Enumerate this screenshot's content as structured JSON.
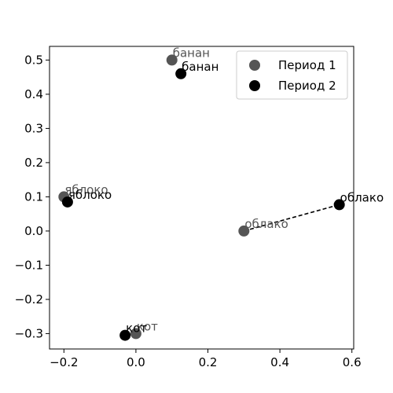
{
  "chart_data": {
    "type": "scatter",
    "xlim": [
      -0.24,
      0.605
    ],
    "ylim": [
      -0.345,
      0.54
    ],
    "x_ticks": [
      -0.2,
      0.0,
      0.2,
      0.4,
      0.6
    ],
    "x_tick_labels": [
      "−0.2",
      "0.0",
      "0.2",
      "0.4",
      "0.6"
    ],
    "y_ticks": [
      -0.3,
      -0.2,
      -0.1,
      0.0,
      0.1,
      0.2,
      0.3,
      0.4,
      0.5
    ],
    "y_tick_labels": [
      "−0.3",
      "−0.2",
      "−0.1",
      "0.0",
      "0.1",
      "0.2",
      "0.3",
      "0.4",
      "0.5"
    ],
    "grid": false,
    "legend_position": "top-right",
    "series": [
      {
        "name": "Период 1",
        "color": "#555555",
        "points": [
          {
            "label": "банан",
            "x": 0.1,
            "y": 0.5
          },
          {
            "label": "яблоко",
            "x": -0.2,
            "y": 0.1
          },
          {
            "label": "облако",
            "x": 0.3,
            "y": 0.0
          },
          {
            "label": "кот",
            "x": 0.0,
            "y": -0.3
          }
        ]
      },
      {
        "name": "Период 2",
        "color": "#000000",
        "points": [
          {
            "label": "банан",
            "x": 0.125,
            "y": 0.46
          },
          {
            "label": "яблоко",
            "x": -0.19,
            "y": 0.085
          },
          {
            "label": "облако",
            "x": 0.565,
            "y": 0.077
          },
          {
            "label": "кот",
            "x": -0.03,
            "y": -0.305
          }
        ]
      }
    ],
    "shift_arrows": [
      {
        "label": "облако",
        "from": [
          0.3,
          0.0
        ],
        "to": [
          0.565,
          0.077
        ],
        "style": "dashed"
      }
    ]
  }
}
